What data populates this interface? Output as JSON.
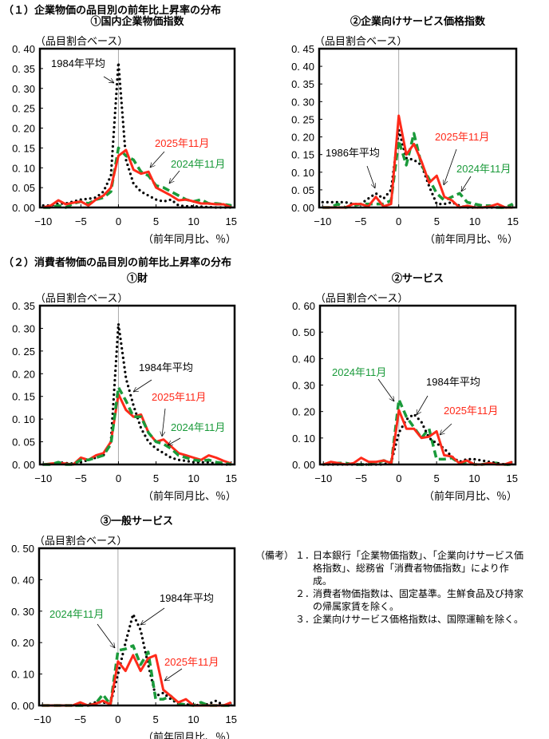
{
  "sections": [
    {
      "title": "（１）企業物価の品目別の前年比上昇率の分布"
    },
    {
      "title": "（２）消費者物価の品目別の前年比上昇率の分布"
    }
  ],
  "notes": {
    "head": "（備考）",
    "items": [
      {
        "num": "１．",
        "text": "日本銀行「企業物価指数」、「企業向けサービス価格指数」、総務省「消費者物価指数」により作成。"
      },
      {
        "num": "２．",
        "text": "消費者物価指数は、固定基準。生鮮食品及び持家の帰属家賃を除く。"
      },
      {
        "num": "３．",
        "text": "企業向けサービス価格指数は、国際運輸を除く。"
      }
    ]
  },
  "colors": {
    "2025": "#ff2a1a",
    "2024": "#1a9a3a",
    "base": "#000000",
    "zero_line": "#aaaaaa"
  },
  "chart_data": [
    {
      "type": "line",
      "title": "①国内企業物価指数",
      "ylabel": "（品目割合ベース）",
      "xlabel": "（前年同月比、％）",
      "xlim": [
        -10,
        15
      ],
      "ylim": [
        0,
        0.4
      ],
      "ystep": 0.05,
      "xticks": [
        -10,
        -5,
        0,
        5,
        10,
        15
      ],
      "grid": false,
      "x": [
        -10,
        -9,
        -8,
        -7,
        -6,
        -5,
        -4,
        -3,
        -2,
        -1,
        0,
        1,
        2,
        3,
        4,
        5,
        6,
        7,
        8,
        9,
        10,
        11,
        12,
        13,
        14,
        15
      ],
      "series": [
        {
          "name": "1984年平均",
          "style": "dotted",
          "color": "#000000",
          "values": [
            0.005,
            0.005,
            0.01,
            0.01,
            0.015,
            0.02,
            0.022,
            0.025,
            0.04,
            0.08,
            0.365,
            0.12,
            0.06,
            0.04,
            0.03,
            0.02,
            0.015,
            0.02,
            0.005,
            0.003,
            0.003,
            0.002,
            0.001,
            0,
            0,
            0
          ]
        },
        {
          "name": "2024年11月",
          "style": "dashed",
          "color": "#1a9a3a",
          "values": [
            0,
            0,
            0.005,
            0,
            0.01,
            0.015,
            0.01,
            0.02,
            0.025,
            0.04,
            0.15,
            0.13,
            0.12,
            0.09,
            0.08,
            0.055,
            0.05,
            0.04,
            0.03,
            0.02,
            0.015,
            0.02,
            0.01,
            0.01,
            0.008,
            0.005
          ]
        },
        {
          "name": "2025年11月",
          "style": "solid",
          "color": "#ff2a1a",
          "values": [
            0,
            0.005,
            0.018,
            0.008,
            0.012,
            0.015,
            0.005,
            0.02,
            0.03,
            0.05,
            0.13,
            0.145,
            0.095,
            0.085,
            0.09,
            0.05,
            0.04,
            0.03,
            0.018,
            0.02,
            0.015,
            0.01,
            0.01,
            0.008,
            0.008,
            0
          ]
        }
      ]
    },
    {
      "type": "line",
      "title": "②企業向けサービス価格指数",
      "ylabel": "（品目割合ベース）",
      "xlabel": "（前年同月比、％）",
      "xlim": [
        -10,
        15
      ],
      "ylim": [
        0,
        0.45
      ],
      "ystep": 0.05,
      "xticks": [
        -10,
        -5,
        0,
        5,
        10,
        15
      ],
      "grid": false,
      "x": [
        -10,
        -9,
        -8,
        -7,
        -6,
        -5,
        -4,
        -3,
        -2,
        -1,
        0,
        1,
        2,
        3,
        4,
        5,
        6,
        7,
        8,
        9,
        10,
        11,
        12,
        13,
        14,
        15
      ],
      "series": [
        {
          "name": "1986年平均",
          "style": "dotted",
          "color": "#000000",
          "values": [
            0.015,
            0.015,
            0.015,
            0.015,
            0.01,
            0.01,
            0.025,
            0.04,
            0.025,
            0.05,
            0.22,
            0.14,
            0.135,
            0.12,
            0.06,
            0.01,
            0.01,
            0.015,
            0.005,
            0,
            0,
            0,
            0,
            0,
            0,
            0
          ]
        },
        {
          "name": "2024年11月",
          "style": "dashed",
          "color": "#1a9a3a",
          "values": [
            0,
            0,
            0.01,
            0,
            0.005,
            0.01,
            0.01,
            0.01,
            0.01,
            0.02,
            0.19,
            0.12,
            0.21,
            0.12,
            0.08,
            0.04,
            0.02,
            0.03,
            0.04,
            0.015,
            0.01,
            0.005,
            0.005,
            0,
            0,
            0.01
          ]
        },
        {
          "name": "2025年11月",
          "style": "solid",
          "color": "#ff2a1a",
          "values": [
            0,
            0,
            0,
            0,
            0.01,
            0.01,
            0.003,
            0.03,
            0.003,
            0.01,
            0.26,
            0.15,
            0.18,
            0.13,
            0.07,
            0.09,
            0.03,
            0.02,
            0,
            0.005,
            0,
            0,
            0.003,
            0.01,
            0,
            0
          ]
        }
      ]
    },
    {
      "type": "line",
      "title": "①財",
      "ylabel": "（品目割合ベース）",
      "xlabel": "（前年同月比、％）",
      "xlim": [
        -10,
        15
      ],
      "ylim": [
        0,
        0.35
      ],
      "ystep": 0.05,
      "xticks": [
        -10,
        -5,
        0,
        5,
        10,
        15
      ],
      "grid": false,
      "x": [
        -10,
        -9,
        -8,
        -7,
        -6,
        -5,
        -4,
        -3,
        -2,
        -1,
        0,
        1,
        2,
        3,
        4,
        5,
        6,
        7,
        8,
        9,
        10,
        11,
        12,
        13,
        14,
        15
      ],
      "series": [
        {
          "name": "1984年平均",
          "style": "dotted",
          "color": "#000000",
          "values": [
            0,
            0,
            0.005,
            0.003,
            0.002,
            0.005,
            0.01,
            0.015,
            0.02,
            0.05,
            0.31,
            0.19,
            0.13,
            0.08,
            0.05,
            0.035,
            0.025,
            0.015,
            0.01,
            0.008,
            0.005,
            0.005,
            0.005,
            0.002,
            0,
            0
          ]
        },
        {
          "name": "2025年11月",
          "style": "solid",
          "color": "#ff2a1a",
          "values": [
            0,
            0.002,
            0.003,
            0.002,
            0,
            0.015,
            0.01,
            0.02,
            0.025,
            0.05,
            0.155,
            0.12,
            0.105,
            0.11,
            0.07,
            0.05,
            0.055,
            0.04,
            0.025,
            0.02,
            0.015,
            0.01,
            0.02,
            0.015,
            0.008,
            0.002
          ]
        },
        {
          "name": "2024年11月",
          "style": "dashed",
          "color": "#1a9a3a",
          "values": [
            0,
            0,
            0.005,
            0,
            0,
            0.01,
            0.01,
            0.015,
            0.02,
            0.045,
            0.17,
            0.14,
            0.105,
            0.105,
            0.07,
            0.05,
            0.045,
            0.035,
            0.02,
            0.015,
            0.01,
            0.008,
            0.01,
            0.005,
            0.003,
            0
          ]
        }
      ]
    },
    {
      "type": "line",
      "title": "②サービス",
      "ylabel": "（品目割合ベース）",
      "xlabel": "（前年同月比、％）",
      "xlim": [
        -10,
        15
      ],
      "ylim": [
        0,
        0.6
      ],
      "ystep": 0.1,
      "xticks": [
        -10,
        -5,
        0,
        5,
        10,
        15
      ],
      "grid": false,
      "x": [
        -10,
        -9,
        -8,
        -7,
        -6,
        -5,
        -4,
        -3,
        -2,
        -1,
        0,
        1,
        2,
        3,
        4,
        5,
        6,
        7,
        8,
        9,
        10,
        11,
        12,
        13,
        14,
        15
      ],
      "series": [
        {
          "name": "2024年11月",
          "style": "dashed",
          "color": "#1a9a3a",
          "values": [
            0,
            0.005,
            0.005,
            0.005,
            0,
            0,
            0,
            0.005,
            0.015,
            0.005,
            0.245,
            0.18,
            0.14,
            0.1,
            0.135,
            0.02,
            0.02,
            0.025,
            0.005,
            0.01,
            0,
            0,
            0.005,
            0.005,
            0,
            0
          ]
        },
        {
          "name": "1984年平均",
          "style": "dotted",
          "color": "#000000",
          "values": [
            0,
            0,
            0,
            0,
            0,
            0,
            0,
            0,
            0,
            0.01,
            0.12,
            0.17,
            0.19,
            0.16,
            0.1,
            0.08,
            0.06,
            0.03,
            0.01,
            0.02,
            0.02,
            0.015,
            0.01,
            0.005,
            0,
            0
          ]
        },
        {
          "name": "2025年11月",
          "style": "solid",
          "color": "#ff2a1a",
          "values": [
            0,
            0.01,
            0.005,
            0,
            0.005,
            0.025,
            0.01,
            0.01,
            0.015,
            0.005,
            0.205,
            0.135,
            0.135,
            0.1,
            0.105,
            0.125,
            0.035,
            0.03,
            0.005,
            0.015,
            0,
            0,
            0.005,
            0,
            0,
            0.01
          ]
        }
      ]
    },
    {
      "type": "line",
      "title": "③一般サービス",
      "ylabel": "（品目割合ベース）",
      "xlabel": "（前年同月比、％）",
      "xlim": [
        -10,
        15
      ],
      "ylim": [
        0,
        0.5
      ],
      "ystep": 0.1,
      "xticks": [
        -10,
        -5,
        0,
        5,
        10,
        15
      ],
      "grid": false,
      "x": [
        -10,
        -9,
        -8,
        -7,
        -6,
        -5,
        -4,
        -3,
        -2,
        -1,
        0,
        1,
        2,
        3,
        4,
        5,
        6,
        7,
        8,
        9,
        10,
        11,
        12,
        13,
        14,
        15
      ],
      "series": [
        {
          "name": "1984年平均",
          "style": "dotted",
          "color": "#000000",
          "values": [
            0,
            0,
            0,
            0,
            0,
            0,
            0.003,
            0.01,
            0.01,
            0.005,
            0.1,
            0.2,
            0.29,
            0.24,
            0.13,
            0.03,
            0.04,
            0.02,
            0.005,
            0.003,
            0.003,
            0,
            0.005,
            0.015,
            0,
            0
          ]
        },
        {
          "name": "2024年11月",
          "style": "dashed",
          "color": "#1a9a3a",
          "values": [
            0,
            0,
            0,
            0,
            0,
            0,
            0,
            0.005,
            0.035,
            0.003,
            0.175,
            0.18,
            0.19,
            0.13,
            0.17,
            0.02,
            0.02,
            0.03,
            0.005,
            0.003,
            0,
            0.01,
            0,
            0,
            0,
            0
          ]
        },
        {
          "name": "2025年11月",
          "style": "solid",
          "color": "#ff2a1a",
          "values": [
            0,
            0,
            0,
            0,
            0,
            0.01,
            0,
            0.005,
            0.015,
            0.003,
            0.14,
            0.11,
            0.16,
            0.11,
            0.15,
            0.16,
            0.05,
            0.03,
            0.01,
            0.02,
            0,
            0,
            0,
            0,
            0,
            0.01
          ]
        }
      ]
    }
  ]
}
